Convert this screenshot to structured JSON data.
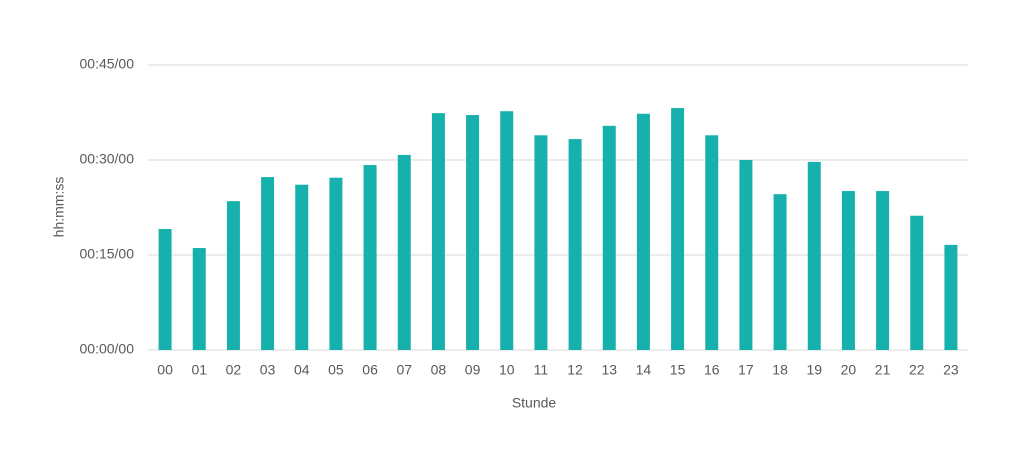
{
  "chart_data": {
    "type": "bar",
    "x_label": "Stunde",
    "y_label": "hh:mm:ss",
    "categories": [
      "00",
      "01",
      "02",
      "03",
      "04",
      "05",
      "06",
      "07",
      "08",
      "09",
      "10",
      "11",
      "12",
      "13",
      "14",
      "15",
      "16",
      "17",
      "18",
      "19",
      "20",
      "21",
      "22",
      "23"
    ],
    "values": [
      19.1,
      16.1,
      23.5,
      27.3,
      26.1,
      27.2,
      29.2,
      30.8,
      37.4,
      37.1,
      37.7,
      33.9,
      33.3,
      35.4,
      37.3,
      38.2,
      33.9,
      30.0,
      24.6,
      29.7,
      25.1,
      25.1,
      21.2,
      16.6
    ],
    "color": "#16b1ac",
    "ylim": [
      0,
      45
    ],
    "yticks": [
      {
        "value": 0,
        "label": "00:00/00"
      },
      {
        "value": 15,
        "label": "00:15/00"
      },
      {
        "value": 30,
        "label": "00:30/00"
      },
      {
        "value": 45,
        "label": "00:45/00"
      }
    ],
    "grid": true
  }
}
